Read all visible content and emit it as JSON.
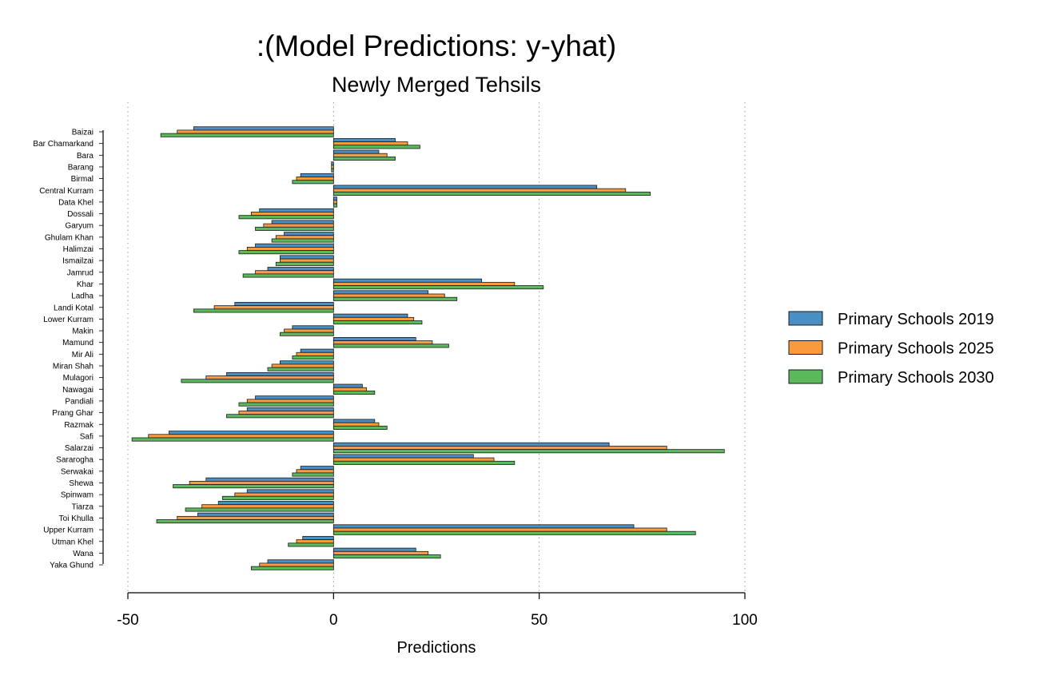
{
  "chart_data": {
    "type": "bar",
    "orientation": "horizontal",
    "title": ":(Model Predictions: y-yhat)",
    "subtitle": "Newly Merged Tehsils",
    "xlabel": "Predictions",
    "ylabel": "",
    "xlim": [
      -50,
      100
    ],
    "xticks": [
      -50,
      0,
      50,
      100
    ],
    "xtick_labels": [
      "-50",
      "0",
      "50",
      "100"
    ],
    "grid": "vertical dotted",
    "legend_position": "right",
    "categories": [
      "Baizai",
      "Bar Chamarkand",
      "Bara",
      "Barang",
      "Birmal",
      "Central Kurram",
      "Data Khel",
      "Dossali",
      "Garyum",
      "Ghulam Khan",
      "Halimzai",
      "Ismailzai",
      "Jamrud",
      "Khar",
      "Ladha",
      "Landi Kotal",
      "Lower Kurram",
      "Makin",
      "Mamund",
      "Mir Ali",
      "Miran Shah",
      "Mulagori",
      "Nawagai",
      "Pandiali",
      "Prang Ghar",
      "Razmak",
      "Safi",
      "Salarzai",
      "Sararogha",
      "Serwakai",
      "Shewa",
      "Spinwam",
      "Tiarza",
      "Toi Khulla",
      "Upper Kurram",
      "Utman Khel",
      "Wana",
      "Yaka Ghund"
    ],
    "series": [
      {
        "name": "Primary Schools 2019",
        "color": "#4a8fc4",
        "values": [
          -34,
          15,
          11,
          -0.5,
          -8,
          64,
          0.8,
          -18,
          -15,
          -12,
          -19,
          -13,
          -16,
          36,
          23,
          -24,
          18,
          -10,
          20,
          -8,
          -13,
          -26,
          7,
          -19,
          -21,
          10,
          -40,
          67,
          34,
          -8,
          -31,
          -21,
          -28,
          -33,
          73,
          -7.5,
          20,
          -16
        ]
      },
      {
        "name": "Primary Schools 2025",
        "color": "#f99a3f",
        "values": [
          -38,
          18,
          13,
          -0.5,
          -9,
          71,
          0.8,
          -20,
          -17,
          -14,
          -21,
          -13,
          -19,
          44,
          27,
          -29,
          19.5,
          -12,
          24,
          -9,
          -15,
          -31,
          8,
          -21,
          -23,
          11,
          -45,
          81,
          39,
          -9,
          -35,
          -24,
          -32,
          -38,
          81,
          -9,
          23,
          -18
        ]
      },
      {
        "name": "Primary Schools 2030",
        "color": "#5cb85c",
        "values": [
          -42,
          21,
          15,
          -0.5,
          -10,
          77,
          0.8,
          -23,
          -19,
          -15,
          -23,
          -14,
          -22,
          51,
          30,
          -34,
          21.5,
          -13,
          28,
          -10,
          -16,
          -37,
          10,
          -23,
          -26,
          13,
          -49,
          95,
          44,
          -10,
          -39,
          -27,
          -36,
          -43,
          88,
          -11,
          26,
          -20
        ]
      }
    ]
  }
}
